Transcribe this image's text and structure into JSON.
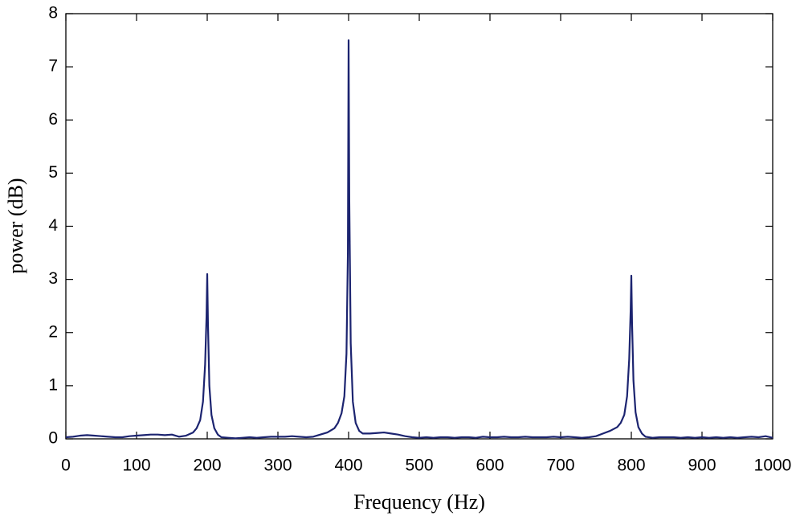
{
  "chart_data": {
    "type": "line",
    "xlabel": "Frequency (Hz)",
    "ylabel": "power (dB)",
    "color": "#1c2470",
    "x": [
      0,
      10,
      20,
      30,
      40,
      50,
      60,
      70,
      80,
      90,
      100,
      110,
      120,
      130,
      140,
      150,
      160,
      170,
      180,
      185,
      190,
      194,
      197,
      199,
      200,
      201,
      203,
      206,
      210,
      215,
      220,
      230,
      240,
      250,
      260,
      270,
      280,
      290,
      300,
      310,
      320,
      330,
      340,
      350,
      360,
      370,
      380,
      385,
      390,
      394,
      397,
      399,
      400,
      401,
      403,
      406,
      410,
      415,
      420,
      430,
      440,
      450,
      460,
      470,
      480,
      490,
      500,
      510,
      520,
      530,
      540,
      550,
      560,
      570,
      580,
      590,
      600,
      610,
      620,
      630,
      640,
      650,
      660,
      670,
      680,
      690,
      700,
      710,
      720,
      730,
      740,
      750,
      760,
      770,
      780,
      785,
      790,
      794,
      797,
      799,
      800,
      801,
      803,
      806,
      810,
      815,
      820,
      830,
      840,
      850,
      860,
      870,
      880,
      890,
      900,
      910,
      920,
      930,
      940,
      950,
      960,
      970,
      980,
      990,
      1000
    ],
    "values": [
      0.03,
      0.04,
      0.06,
      0.07,
      0.06,
      0.05,
      0.04,
      0.03,
      0.03,
      0.05,
      0.06,
      0.07,
      0.08,
      0.08,
      0.07,
      0.08,
      0.04,
      0.06,
      0.12,
      0.2,
      0.35,
      0.7,
      1.4,
      2.3,
      3.1,
      2.2,
      1.0,
      0.45,
      0.2,
      0.08,
      0.03,
      0.02,
      0.01,
      0.02,
      0.03,
      0.02,
      0.03,
      0.04,
      0.04,
      0.04,
      0.05,
      0.04,
      0.03,
      0.04,
      0.08,
      0.12,
      0.2,
      0.3,
      0.48,
      0.8,
      1.6,
      3.5,
      7.5,
      4.5,
      1.8,
      0.7,
      0.3,
      0.15,
      0.1,
      0.1,
      0.11,
      0.12,
      0.1,
      0.08,
      0.05,
      0.03,
      0.02,
      0.03,
      0.02,
      0.03,
      0.03,
      0.02,
      0.03,
      0.03,
      0.02,
      0.04,
      0.03,
      0.03,
      0.04,
      0.03,
      0.03,
      0.04,
      0.03,
      0.03,
      0.03,
      0.04,
      0.03,
      0.04,
      0.03,
      0.02,
      0.03,
      0.05,
      0.1,
      0.15,
      0.22,
      0.3,
      0.45,
      0.8,
      1.5,
      2.4,
      3.07,
      2.2,
      1.1,
      0.5,
      0.22,
      0.1,
      0.04,
      0.02,
      0.03,
      0.03,
      0.03,
      0.02,
      0.03,
      0.02,
      0.03,
      0.02,
      0.03,
      0.02,
      0.03,
      0.02,
      0.03,
      0.04,
      0.03,
      0.05,
      0.02
    ],
    "xlim": [
      0,
      1000
    ],
    "xticks": [
      0,
      100,
      200,
      300,
      400,
      500,
      600,
      700,
      800,
      900,
      1000
    ],
    "ylim": [
      0,
      8
    ],
    "yticks": [
      0,
      1,
      2,
      3,
      4,
      5,
      6,
      7,
      8
    ]
  }
}
